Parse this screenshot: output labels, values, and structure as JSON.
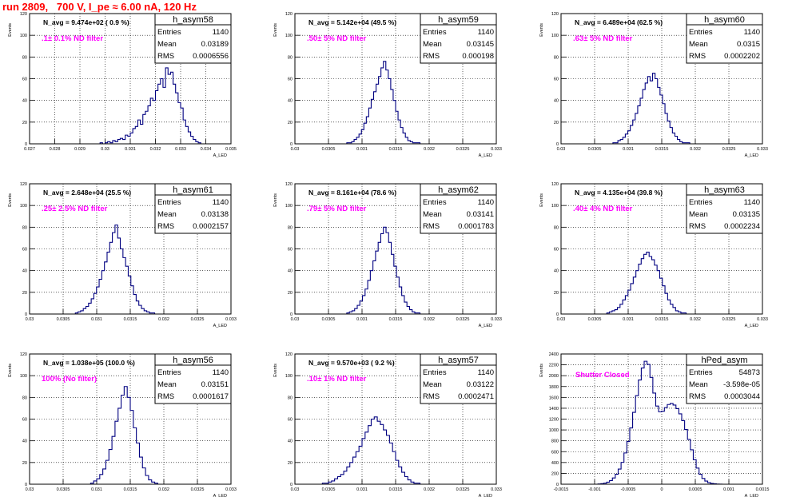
{
  "run_title": "run 2809,   700 V, I_pe ≈ 6.00 nA, 120 Hz",
  "stat_labels": {
    "entries": "Entries",
    "mean": "Mean",
    "rms": "RMS"
  },
  "chart_data": [
    {
      "type": "histogram",
      "name": "h_asym58",
      "header": "N_avg = 9.474e+02 ( 0.9 %)",
      "filter": ".1± 0.1% ND filter",
      "stats": {
        "entries": "1140",
        "mean": "0.03189",
        "rms": "0.0006556"
      },
      "xlim": [
        0.027,
        0.035
      ],
      "ylim": [
        0,
        120
      ],
      "xticks": [
        "0.027",
        "0.028",
        "0.029",
        "0.03",
        "0.031",
        "0.032",
        "0.033",
        "0.034",
        "0.035"
      ],
      "yticks": [
        "0",
        "20",
        "40",
        "60",
        "80",
        "100",
        "120"
      ],
      "ylabel": "Events",
      "xlabel": "A_LED",
      "bin_lo": 0.0298,
      "bin_hi": 0.0338,
      "counts": [
        1,
        0,
        1,
        2,
        1,
        3,
        2,
        4,
        5,
        4,
        8,
        7,
        10,
        14,
        16,
        22,
        18,
        27,
        30,
        35,
        42,
        40,
        49,
        55,
        60,
        52,
        70,
        64,
        66,
        55,
        47,
        38,
        33,
        22,
        16,
        11,
        7,
        4,
        2,
        1
      ]
    },
    {
      "type": "histogram",
      "name": "h_asym59",
      "header": "N_avg = 5.142e+04 (49.5 %)",
      "filter": ".50± 5% ND filter",
      "stats": {
        "entries": "1140",
        "mean": "0.03145",
        "rms": "0.000198"
      },
      "xlim": [
        0.03,
        0.0333
      ],
      "ylim": [
        0,
        120
      ],
      "xticks": [
        "0.03",
        "0.0305",
        "0.031",
        "0.0315",
        "0.032",
        "0.0325",
        "0.033"
      ],
      "yticks": [
        "0",
        "20",
        "40",
        "60",
        "80",
        "100",
        "120"
      ],
      "ylabel": "Events",
      "xlabel": "A_LED",
      "bin_lo": 0.03085,
      "bin_hi": 0.03205,
      "counts": [
        1,
        1,
        2,
        4,
        6,
        9,
        13,
        19,
        25,
        33,
        41,
        48,
        55,
        62,
        70,
        76,
        68,
        60,
        50,
        40,
        30,
        22,
        15,
        10,
        6,
        3,
        2,
        1,
        1,
        1
      ]
    },
    {
      "type": "histogram",
      "name": "h_asym60",
      "header": "N_avg = 6.489e+04 (62.5 %)",
      "filter": ".63± 5% ND filter",
      "stats": {
        "entries": "1140",
        "mean": "0.0315",
        "rms": "0.0002202"
      },
      "xlim": [
        0.03,
        0.0333
      ],
      "ylim": [
        0,
        120
      ],
      "xticks": [
        "0.03",
        "0.0305",
        "0.031",
        "0.0315",
        "0.032",
        "0.0325",
        "0.033"
      ],
      "yticks": [
        "0",
        "20",
        "40",
        "60",
        "80",
        "100",
        "120"
      ],
      "ylabel": "Events",
      "xlabel": "A_LED",
      "bin_lo": 0.03085,
      "bin_hi": 0.03215,
      "counts": [
        1,
        1,
        3,
        4,
        6,
        9,
        12,
        17,
        22,
        28,
        35,
        42,
        50,
        56,
        62,
        58,
        65,
        60,
        52,
        45,
        37,
        28,
        21,
        15,
        10,
        7,
        4,
        2,
        1,
        1,
        1,
        0
      ]
    },
    {
      "type": "histogram",
      "name": "h_asym61",
      "header": "N_avg = 2.648e+04 (25.5 %)",
      "filter": ".25± 2.5% ND filter",
      "stats": {
        "entries": "1140",
        "mean": "0.03138",
        "rms": "0.0002157"
      },
      "xlim": [
        0.03,
        0.0333
      ],
      "ylim": [
        0,
        120
      ],
      "xticks": [
        "0.03",
        "0.0305",
        "0.031",
        "0.0315",
        "0.032",
        "0.0325",
        "0.033"
      ],
      "yticks": [
        "0",
        "20",
        "40",
        "60",
        "80",
        "100",
        "120"
      ],
      "ylabel": "Events",
      "xlabel": "A_LED",
      "bin_lo": 0.03075,
      "bin_hi": 0.03205,
      "counts": [
        1,
        2,
        3,
        5,
        7,
        10,
        14,
        19,
        25,
        32,
        40,
        48,
        57,
        66,
        75,
        82,
        70,
        60,
        52,
        44,
        35,
        26,
        18,
        12,
        8,
        5,
        3,
        2,
        1,
        1
      ]
    },
    {
      "type": "histogram",
      "name": "h_asym62",
      "header": "N_avg = 8.161e+04 (78.6 %)",
      "filter": ".79± 5% ND filter",
      "stats": {
        "entries": "1140",
        "mean": "0.03141",
        "rms": "0.0001783"
      },
      "xlim": [
        0.03,
        0.0333
      ],
      "ylim": [
        0,
        120
      ],
      "xticks": [
        "0.03",
        "0.0305",
        "0.031",
        "0.0315",
        "0.032",
        "0.0325",
        "0.033"
      ],
      "yticks": [
        "0",
        "20",
        "40",
        "60",
        "80",
        "100",
        "120"
      ],
      "ylabel": "Events",
      "xlabel": "A_LED",
      "bin_lo": 0.03085,
      "bin_hi": 0.03205,
      "counts": [
        1,
        2,
        3,
        5,
        8,
        12,
        17,
        23,
        31,
        40,
        49,
        58,
        66,
        74,
        80,
        75,
        66,
        55,
        44,
        34,
        25,
        17,
        11,
        7,
        4,
        2,
        1,
        1
      ]
    },
    {
      "type": "histogram",
      "name": "h_asym63",
      "header": "N_avg = 4.135e+04 (39.8 %)",
      "filter": ".40± 4% ND filter",
      "stats": {
        "entries": "1140",
        "mean": "0.03135",
        "rms": "0.0002234"
      },
      "xlim": [
        0.03,
        0.0333
      ],
      "ylim": [
        0,
        120
      ],
      "xticks": [
        "0.03",
        "0.0305",
        "0.031",
        "0.0315",
        "0.032",
        "0.0325",
        "0.033"
      ],
      "yticks": [
        "0",
        "20",
        "40",
        "60",
        "80",
        "100",
        "120"
      ],
      "ylabel": "Events",
      "xlabel": "A_LED",
      "bin_lo": 0.03075,
      "bin_hi": 0.03205,
      "counts": [
        1,
        2,
        3,
        4,
        6,
        9,
        13,
        17,
        22,
        28,
        34,
        40,
        46,
        51,
        55,
        57,
        53,
        50,
        45,
        40,
        33,
        26,
        19,
        13,
        9,
        6,
        3,
        2,
        1,
        1
      ]
    },
    {
      "type": "histogram",
      "name": "h_asym56",
      "header": "N_avg = 1.038e+05 (100.0 %)",
      "filter": "100% (No filter)",
      "stats": {
        "entries": "1140",
        "mean": "0.03151",
        "rms": "0.0001617"
      },
      "xlim": [
        0.03,
        0.0333
      ],
      "ylim": [
        0,
        120
      ],
      "xticks": [
        "0.03",
        "0.0305",
        "0.031",
        "0.0315",
        "0.032",
        "0.0325",
        "0.033"
      ],
      "yticks": [
        "0",
        "20",
        "40",
        "60",
        "80",
        "100",
        "120"
      ],
      "ylabel": "Events",
      "xlabel": "A_LED",
      "bin_lo": 0.031,
      "bin_hi": 0.0321,
      "counts": [
        1,
        3,
        5,
        9,
        14,
        22,
        32,
        44,
        58,
        70,
        82,
        90,
        80,
        68,
        52,
        38,
        25,
        15,
        8,
        4,
        2,
        1
      ]
    },
    {
      "type": "histogram",
      "name": "h_asym57",
      "header": "N_avg = 9.570e+03 ( 9.2 %)",
      "filter": ".10± 1% ND filter",
      "stats": {
        "entries": "1140",
        "mean": "0.03122",
        "rms": "0.0002471"
      },
      "xlim": [
        0.03,
        0.0333
      ],
      "ylim": [
        0,
        120
      ],
      "xticks": [
        "0.03",
        "0.0305",
        "0.031",
        "0.0315",
        "0.032",
        "0.0325",
        "0.033"
      ],
      "yticks": [
        "0",
        "20",
        "40",
        "60",
        "80",
        "100",
        "120"
      ],
      "ylabel": "Events",
      "xlabel": "A_LED",
      "bin_lo": 0.03045,
      "bin_hi": 0.03205,
      "counts": [
        1,
        1,
        2,
        3,
        5,
        7,
        9,
        12,
        16,
        20,
        25,
        30,
        35,
        42,
        48,
        54,
        60,
        62,
        58,
        55,
        50,
        45,
        38,
        30,
        22,
        16,
        11,
        7,
        4,
        2,
        1,
        1
      ]
    },
    {
      "type": "histogram",
      "name": "hPed_asym",
      "header": "",
      "filter": "Shutter Closed",
      "stats": {
        "entries": "54873",
        "mean": "-3.598e-05",
        "rms": "0.0003044"
      },
      "xlim": [
        -0.0015,
        0.0015
      ],
      "ylim": [
        0,
        2500
      ],
      "xticks": [
        "-0.0015",
        "-0.001",
        "-0.0005",
        "0",
        "0.0005",
        "0.001",
        "0.0015"
      ],
      "yticks": [
        "0",
        "200",
        "400",
        "600",
        "800",
        "1000",
        "1200",
        "1400",
        "1600",
        "1800",
        "2000",
        "2200",
        "2400"
      ],
      "ylabel": "Events",
      "xlabel": "A_LED",
      "bin_lo": -0.00095,
      "bin_hi": 0.0009,
      "counts": [
        5,
        10,
        20,
        40,
        70,
        120,
        190,
        290,
        420,
        600,
        820,
        1080,
        1380,
        1700,
        2000,
        2230,
        2360,
        2300,
        2050,
        1750,
        1500,
        1390,
        1400,
        1470,
        1530,
        1550,
        1520,
        1450,
        1350,
        1220,
        1050,
        860,
        660,
        470,
        310,
        190,
        110,
        60,
        30,
        15,
        8,
        4,
        2
      ]
    }
  ]
}
